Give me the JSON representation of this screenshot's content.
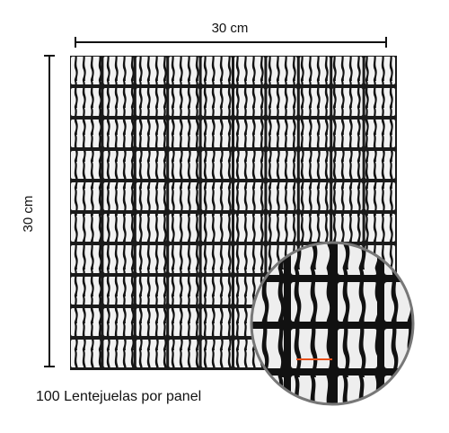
{
  "dimensions": {
    "width_label": "30 cm",
    "height_label": "30 cm"
  },
  "caption": "100 Lentejuelas por panel"
}
